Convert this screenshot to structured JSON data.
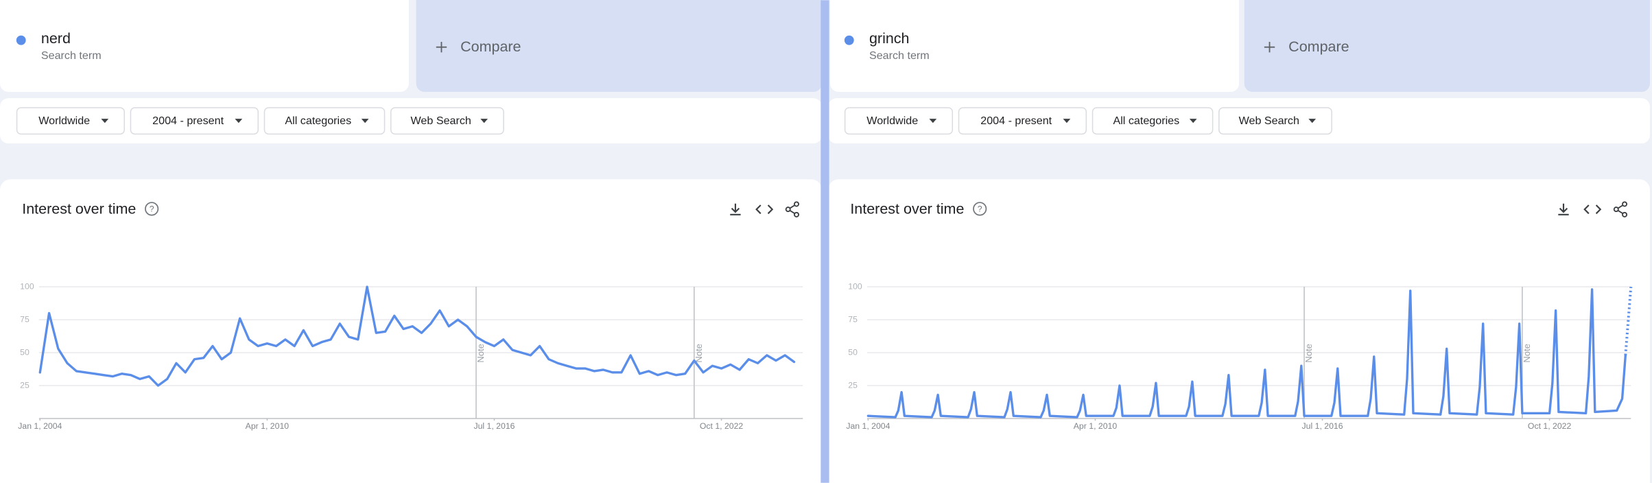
{
  "panels": [
    {
      "term_type": "Search term",
      "compare": "Compare",
      "filters": [
        "Worldwide",
        "2004 - present",
        "All categories",
        "Web Search"
      ],
      "card_title": "Interest over time"
    },
    {
      "term_type": "Search term",
      "compare": "Compare",
      "filters": [
        "Worldwide",
        "2004 - present",
        "All categories",
        "Web Search"
      ],
      "card_title": "Interest over time"
    }
  ],
  "chart_data": [
    {
      "type": "line",
      "xlim": [
        2003.45,
        2024.99
      ],
      "xticks": [
        {
          "value": 2004,
          "label": "Jan 1, 2004"
        },
        {
          "value": 2010.25,
          "label": "Apr 1, 2010"
        },
        {
          "value": 2016.5,
          "label": "Jul 1, 2016"
        },
        {
          "value": 2022.75,
          "label": "Oct 1, 2022"
        }
      ],
      "ylim": [
        0,
        100
      ],
      "yticks": [
        25,
        50,
        75,
        100
      ],
      "grid": true,
      "annotations": [
        {
          "x": 2016.0,
          "label": "Note"
        },
        {
          "x": 2022.0,
          "label": "Note"
        }
      ],
      "series": [
        {
          "name": "nerd",
          "color": "#5b8ee8",
          "x": [
            2004,
            2004.25,
            2004.5,
            2004.75,
            2005,
            2005.25,
            2005.5,
            2005.75,
            2006,
            2006.25,
            2006.5,
            2006.75,
            2007,
            2007.25,
            2007.5,
            2007.75,
            2008,
            2008.25,
            2008.5,
            2008.75,
            2009,
            2009.25,
            2009.5,
            2009.75,
            2010,
            2010.25,
            2010.5,
            2010.75,
            2011,
            2011.25,
            2011.5,
            2011.75,
            2012,
            2012.25,
            2012.5,
            2012.75,
            2013,
            2013.25,
            2013.5,
            2013.75,
            2014,
            2014.25,
            2014.5,
            2014.75,
            2015,
            2015.25,
            2015.5,
            2015.75,
            2016,
            2016.25,
            2016.5,
            2016.75,
            2017,
            2017.25,
            2017.5,
            2017.75,
            2018,
            2018.25,
            2018.5,
            2018.75,
            2019,
            2019.25,
            2019.5,
            2019.75,
            2020,
            2020.25,
            2020.5,
            2020.75,
            2021,
            2021.25,
            2021.5,
            2021.75,
            2022,
            2022.25,
            2022.5,
            2022.75,
            2023,
            2023.25,
            2023.5,
            2023.75,
            2024,
            2024.25,
            2024.5,
            2024.75
          ],
          "values": [
            35,
            80,
            53,
            42,
            36,
            35,
            34,
            33,
            32,
            34,
            33,
            30,
            32,
            25,
            30,
            42,
            35,
            45,
            46,
            55,
            45,
            50,
            76,
            60,
            55,
            57,
            55,
            60,
            55,
            67,
            55,
            58,
            60,
            72,
            62,
            60,
            100,
            65,
            66,
            78,
            68,
            70,
            65,
            72,
            82,
            70,
            75,
            70,
            62,
            58,
            55,
            60,
            52,
            50,
            48,
            55,
            45,
            42,
            40,
            38,
            38,
            36,
            37,
            35,
            35,
            48,
            34,
            36,
            33,
            35,
            33,
            34,
            44,
            35,
            40,
            38,
            41,
            37,
            45,
            42,
            48,
            44,
            48,
            43
          ]
        }
      ]
    },
    {
      "type": "line",
      "xlim": [
        2003.45,
        2024.99
      ],
      "xticks": [
        {
          "value": 2004,
          "label": "Jan 1, 2004"
        },
        {
          "value": 2010.25,
          "label": "Apr 1, 2010"
        },
        {
          "value": 2016.5,
          "label": "Jul 1, 2016"
        },
        {
          "value": 2022.75,
          "label": "Oct 1, 2022"
        }
      ],
      "ylim": [
        0,
        100
      ],
      "yticks": [
        25,
        50,
        75,
        100
      ],
      "grid": true,
      "annotations": [
        {
          "x": 2016.0,
          "label": "Note"
        },
        {
          "x": 2022.0,
          "label": "Note"
        }
      ],
      "series": [
        {
          "name": "grinch",
          "color": "#5b8ee8",
          "partial_last_point": true,
          "x": [
            2004,
            2004.75,
            2004.83,
            2004.92,
            2005,
            2005.75,
            2005.83,
            2005.92,
            2006,
            2006.75,
            2006.83,
            2006.92,
            2007,
            2007.75,
            2007.83,
            2007.92,
            2008,
            2008.75,
            2008.83,
            2008.92,
            2009,
            2009.75,
            2009.83,
            2009.92,
            2010,
            2010.75,
            2010.83,
            2010.92,
            2011,
            2011.75,
            2011.83,
            2011.92,
            2012,
            2012.75,
            2012.83,
            2012.92,
            2013,
            2013.75,
            2013.83,
            2013.92,
            2014,
            2014.75,
            2014.83,
            2014.92,
            2015,
            2015.75,
            2015.83,
            2015.92,
            2016,
            2016.75,
            2016.83,
            2016.92,
            2017,
            2017.75,
            2017.83,
            2017.92,
            2018,
            2018.75,
            2018.83,
            2018.92,
            2019,
            2019.75,
            2019.83,
            2019.92,
            2020,
            2020.75,
            2020.83,
            2020.92,
            2021,
            2021.75,
            2021.83,
            2021.92,
            2022,
            2022.75,
            2022.83,
            2022.92,
            2023,
            2023.75,
            2023.83,
            2023.92,
            2024,
            2024.6,
            2024.75,
            2024.84,
            2024.99
          ],
          "values": [
            2,
            1,
            6,
            20,
            2,
            1,
            6,
            18,
            2,
            1,
            7,
            20,
            2,
            1,
            7,
            20,
            2,
            1,
            6,
            18,
            2,
            1,
            6,
            18,
            2,
            2,
            8,
            25,
            2,
            2,
            9,
            27,
            2,
            2,
            9,
            28,
            2,
            2,
            11,
            33,
            2,
            2,
            12,
            37,
            2,
            2,
            13,
            40,
            2,
            2,
            12,
            38,
            2,
            2,
            15,
            47,
            4,
            3,
            30,
            97,
            4,
            3,
            17,
            53,
            4,
            3,
            24,
            72,
            4,
            3,
            24,
            72,
            4,
            4,
            27,
            82,
            5,
            4,
            32,
            98,
            5,
            6,
            15,
            48,
            100
          ]
        }
      ]
    }
  ]
}
